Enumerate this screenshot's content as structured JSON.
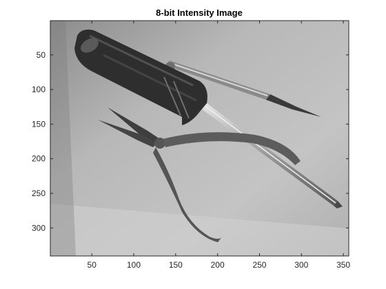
{
  "figure": {
    "title": "8-bit Intensity Image",
    "colormap": "gray",
    "image_size": {
      "rows": 340,
      "cols": 356
    },
    "xlim": [
      0.5,
      356.5
    ],
    "ylim": [
      0.5,
      340.5
    ],
    "x_ticks": [
      {
        "value": 50,
        "label": "50"
      },
      {
        "value": 100,
        "label": "100"
      },
      {
        "value": 150,
        "label": "150"
      },
      {
        "value": 200,
        "label": "200"
      },
      {
        "value": 250,
        "label": "250"
      },
      {
        "value": 300,
        "label": "300"
      },
      {
        "value": 350,
        "label": "350"
      }
    ],
    "y_ticks": [
      {
        "value": 50,
        "label": "50"
      },
      {
        "value": 100,
        "label": "100"
      },
      {
        "value": 150,
        "label": "150"
      },
      {
        "value": 200,
        "label": "200"
      },
      {
        "value": 250,
        "label": "250"
      },
      {
        "value": 300,
        "label": "300"
      }
    ],
    "objects": [
      "screwdriver-large",
      "screwdriver-small",
      "needle-nose-pliers"
    ]
  }
}
